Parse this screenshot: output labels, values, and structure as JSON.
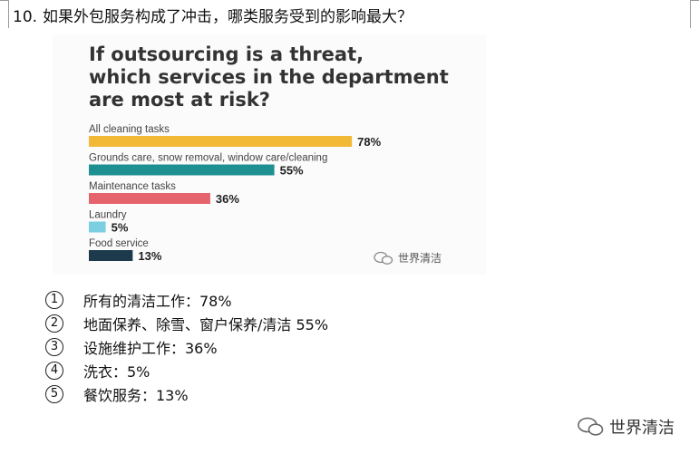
{
  "question": {
    "number": "10.",
    "text": "如果外包服务构成了冲击，哪类服务受到的影响最大？"
  },
  "chart_data": {
    "type": "bar",
    "orientation": "horizontal",
    "title_lines": [
      "If outsourcing is a threat,",
      "which services in the department",
      "are most at risk?"
    ],
    "categories": [
      "All cleaning tasks",
      "Grounds care, snow removal, window care/cleaning",
      "Maintenance tasks",
      "Laundry",
      "Food service"
    ],
    "values": [
      78,
      55,
      36,
      5,
      13
    ],
    "value_labels": [
      "78%",
      "55%",
      "36%",
      "5%",
      "13%"
    ],
    "unit": "%",
    "colors": [
      "#f2b936",
      "#1f9091",
      "#e5636c",
      "#7ccfe0",
      "#1c3a4b"
    ],
    "xlim": [
      0,
      100
    ],
    "grid": false,
    "legend": "none"
  },
  "watermark": {
    "text": "世界清洁",
    "icon": "wechat-logo-icon"
  },
  "options": [
    {
      "mark": "1",
      "text": "所有的清洁工作：78%"
    },
    {
      "mark": "2",
      "text": "地面保养、除雪、窗户保养/清洁 55%"
    },
    {
      "mark": "3",
      "text": "设施维护工作：36%"
    },
    {
      "mark": "4",
      "text": "洗衣：5%"
    },
    {
      "mark": "5",
      "text": "餐饮服务：13%"
    }
  ]
}
